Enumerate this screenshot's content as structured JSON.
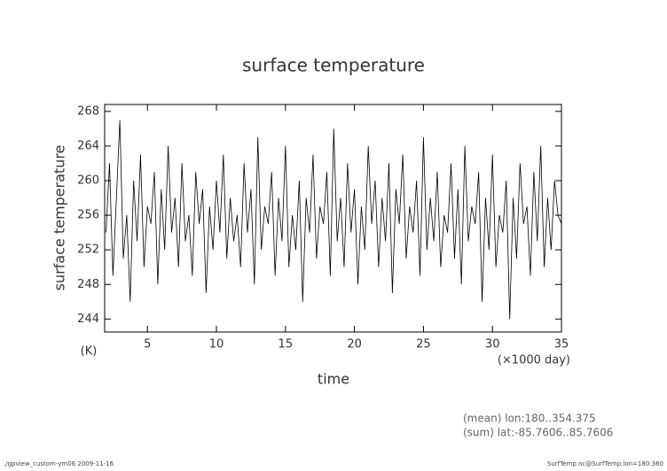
{
  "chart_data": {
    "type": "line",
    "title": "surface temperature",
    "y_label": "surface temperature",
    "y_unit": "(K)",
    "x_label": "time",
    "x_unit": "(×1000 day)",
    "notes": [
      "(mean) lon:180..354.375",
      "(sum) lat:-85.7606..85.7606"
    ],
    "footer_left": "./gpview_custom-ym06  2009-11-16",
    "footer_right": "SurfTemp.nc@SurfTemp,lon=180:360",
    "color": "#000000",
    "xlim": [
      1.9,
      35
    ],
    "xticks": [
      5,
      10,
      15,
      20,
      25,
      30,
      35
    ],
    "ylim": [
      242.5,
      268.8
    ],
    "yticks": [
      244,
      248,
      252,
      256,
      260,
      264,
      268
    ],
    "x": [
      2,
      2.25,
      2.5,
      2.75,
      3,
      3.25,
      3.5,
      3.75,
      4,
      4.25,
      4.5,
      4.75,
      5,
      5.25,
      5.5,
      5.75,
      6,
      6.25,
      6.5,
      6.75,
      7,
      7.25,
      7.5,
      7.75,
      8,
      8.25,
      8.5,
      8.75,
      9,
      9.25,
      9.5,
      9.75,
      10,
      10.25,
      10.5,
      10.75,
      11,
      11.25,
      11.5,
      11.75,
      12,
      12.25,
      12.5,
      12.75,
      13,
      13.25,
      13.5,
      13.75,
      14,
      14.25,
      14.5,
      14.75,
      15,
      15.25,
      15.5,
      15.75,
      16,
      16.25,
      16.5,
      16.75,
      17,
      17.25,
      17.5,
      17.75,
      18,
      18.25,
      18.5,
      18.75,
      19,
      19.25,
      19.5,
      19.75,
      20,
      20.25,
      20.5,
      20.75,
      21,
      21.25,
      21.5,
      21.75,
      22,
      22.25,
      22.5,
      22.75,
      23,
      23.25,
      23.5,
      23.75,
      24,
      24.25,
      24.5,
      24.75,
      25,
      25.25,
      25.5,
      25.75,
      26,
      26.25,
      26.5,
      26.75,
      27,
      27.25,
      27.5,
      27.75,
      28,
      28.25,
      28.5,
      28.75,
      29,
      29.25,
      29.5,
      29.75,
      30,
      30.25,
      30.5,
      30.75,
      31,
      31.25,
      31.5,
      31.75,
      32,
      32.25,
      32.5,
      32.75,
      33,
      33.25,
      33.5,
      33.75,
      34,
      34.25,
      34.5,
      34.75,
      35
    ],
    "values": [
      254,
      262,
      249,
      258,
      267,
      251,
      256,
      246,
      260,
      253,
      263,
      250,
      257,
      255,
      261,
      248,
      259,
      252,
      264,
      254,
      258,
      250,
      262,
      253,
      256,
      249,
      261,
      255,
      259,
      247,
      257,
      252,
      260,
      254,
      263,
      251,
      258,
      253,
      256,
      250,
      262,
      254,
      259,
      248,
      265,
      252,
      257,
      255,
      261,
      249,
      258,
      253,
      264,
      250,
      256,
      252,
      260,
      246,
      258,
      254,
      263,
      251,
      257,
      255,
      261,
      249,
      266,
      253,
      258,
      250,
      262,
      254,
      259,
      248,
      257,
      252,
      264,
      255,
      260,
      250,
      258,
      253,
      262,
      247,
      259,
      255,
      263,
      251,
      257,
      254,
      260,
      249,
      265,
      252,
      258,
      253,
      261,
      250,
      256,
      254,
      262,
      251,
      259,
      248,
      264,
      253,
      257,
      255,
      261,
      246,
      258,
      252,
      263,
      250,
      256,
      254,
      260,
      244,
      258,
      251,
      262,
      255,
      257,
      249,
      261,
      253,
      264,
      250,
      258,
      252,
      260,
      256,
      255
    ]
  }
}
